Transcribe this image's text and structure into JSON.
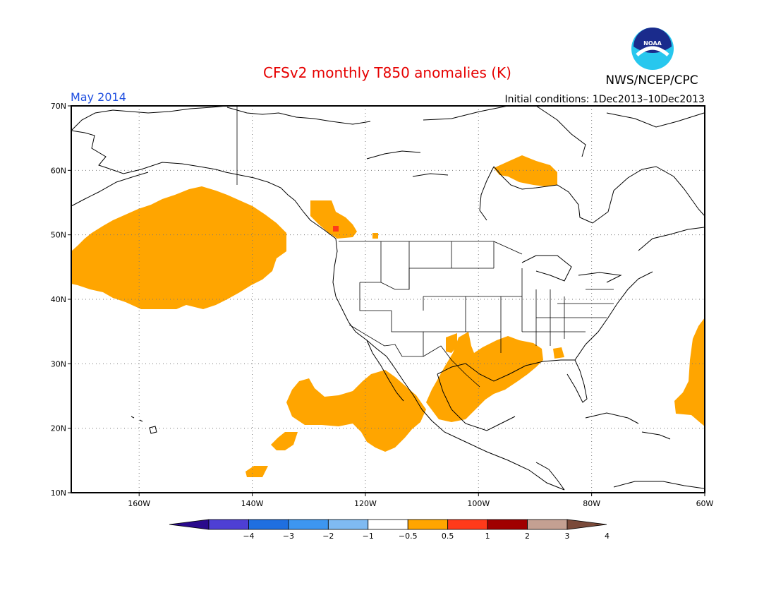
{
  "title": "CFSv2 monthly T850 anomalies (K)",
  "month_label": "May 2014",
  "initial_conditions": "Initial conditions: 1Dec2013–10Dec2013",
  "agency": "NWS/NCEP/CPC",
  "logo_text": "NOAA",
  "colors": {
    "title": "#e60000",
    "month": "#1f4fe0",
    "anomaly_0_5_to_1": "#ffa500",
    "anomaly_1_to_2": "#ff3a1a"
  },
  "map": {
    "lon_range": [
      -172,
      -60
    ],
    "lat_range": [
      10,
      70
    ],
    "lon_ticks": [
      "160W",
      "140W",
      "120W",
      "100W",
      "80W",
      "60W"
    ],
    "lat_ticks": [
      "10N",
      "20N",
      "30N",
      "40N",
      "50N",
      "60N",
      "70N"
    ],
    "grid": "dotted"
  },
  "colorbar": {
    "labels": [
      "−4",
      "−3",
      "−2",
      "−1",
      "−0.5",
      "0.5",
      "1",
      "2",
      "3",
      "4"
    ],
    "colors": [
      "#2a0a8c",
      "#4e3fd4",
      "#1f6fe0",
      "#3d96f0",
      "#7fbaf2",
      "#ffffff",
      "#ffa500",
      "#ff3a1a",
      "#a00000",
      "#c4a092",
      "#7a4a3a"
    ]
  }
}
